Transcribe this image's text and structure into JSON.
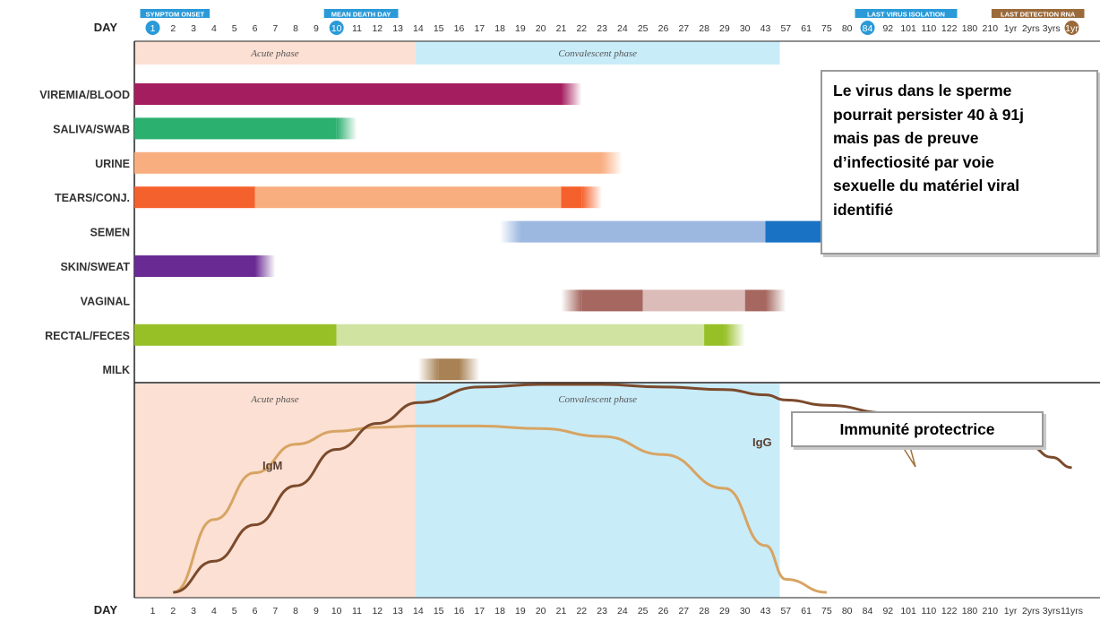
{
  "chart_data": {
    "type": "bar",
    "x_ticks_top": [
      "1",
      "2",
      "3",
      "4",
      "5",
      "6",
      "7",
      "8",
      "9",
      "10",
      "11",
      "12",
      "13",
      "14",
      "15",
      "16",
      "17",
      "18",
      "19",
      "20",
      "21",
      "22",
      "23",
      "24",
      "25",
      "26",
      "27",
      "28",
      "29",
      "30",
      "43",
      "57",
      "61",
      "75",
      "80",
      "84",
      "92",
      "101",
      "110",
      "122",
      "180",
      "210",
      "1yr",
      "2yrs",
      "3yrs",
      "11yrs"
    ],
    "x_ticks_bottom": [
      "1",
      "2",
      "3",
      "4",
      "5",
      "6",
      "7",
      "8",
      "9",
      "10",
      "11",
      "12",
      "13",
      "14",
      "15",
      "16",
      "17",
      "18",
      "19",
      "20",
      "21",
      "22",
      "23",
      "24",
      "25",
      "26",
      "27",
      "28",
      "29",
      "30",
      "43",
      "57",
      "61",
      "75",
      "80",
      "84",
      "92",
      "101",
      "110",
      "122",
      "180",
      "210",
      "1yr",
      "2yrs",
      "3yrs",
      "11yrs"
    ],
    "day_label": "DAY",
    "top_markers": [
      {
        "label": "SYMPTOM ONSET",
        "day": "1",
        "color": "#2a9ad8"
      },
      {
        "label": "MEAN DEATH DAY",
        "day": "10",
        "color": "#2a9ad8"
      },
      {
        "label": "LAST VIRUS ISOLATION",
        "day": "84",
        "color": "#2a9ad8"
      },
      {
        "label": "LAST DETECTION RNA",
        "day": "11yrs",
        "color": "#9b6a3a"
      }
    ],
    "phases": [
      {
        "name": "Acute phase",
        "start_day": "1",
        "end_day": "14",
        "color": "#fbe0d3"
      },
      {
        "name": "Convalescent phase",
        "start_day": "14",
        "end_day": "43",
        "color": "#c9ecf9"
      }
    ],
    "categories": [
      "VIREMIA/BLOOD",
      "SALIVA/SWAB",
      "URINE",
      "TEARS/CONJ.",
      "SEMEN",
      "SKIN/SWEAT",
      "VAGINAL",
      "RECTAL/FECES",
      "MILK"
    ],
    "series": [
      {
        "name": "VIREMIA/BLOOD",
        "segments": [
          {
            "from": "1",
            "to": "21",
            "color": "#a41e5f"
          }
        ],
        "fade_to": "22"
      },
      {
        "name": "SALIVA/SWAB",
        "segments": [
          {
            "from": "1",
            "to": "10",
            "color": "#2cb070"
          }
        ],
        "fade_to": "11"
      },
      {
        "name": "URINE",
        "segments": [
          {
            "from": "1",
            "to": "23",
            "color": "#f9ae80"
          }
        ],
        "fade_to": "24"
      },
      {
        "name": "TEARS/CONJ.",
        "segments": [
          {
            "from": "1",
            "to": "6",
            "color": "#f5612c"
          },
          {
            "from": "6",
            "to": "21",
            "color": "#f9ae80"
          },
          {
            "from": "21",
            "to": "22",
            "color": "#f5612c"
          }
        ],
        "fade_to": "23"
      },
      {
        "name": "SEMEN",
        "segments": [
          {
            "from": "19",
            "to": "43",
            "color": "#9db8e0"
          },
          {
            "from": "43",
            "to": "84",
            "color": "#1a72c4"
          }
        ],
        "fade_from": "18",
        "fade_to": "101"
      },
      {
        "name": "SKIN/SWEAT",
        "segments": [
          {
            "from": "1",
            "to": "6",
            "color": "#6a2a94"
          }
        ],
        "fade_to": "7"
      },
      {
        "name": "VAGINAL",
        "segments": [
          {
            "from": "22",
            "to": "25",
            "color": "#a5675f"
          },
          {
            "from": "25",
            "to": "30",
            "color": "#dcbcb8"
          },
          {
            "from": "30",
            "to": "43",
            "color": "#a5675f"
          }
        ],
        "fade_from": "21",
        "fade_to": "57"
      },
      {
        "name": "RECTAL/FECES",
        "segments": [
          {
            "from": "1",
            "to": "10",
            "color": "#97c027"
          },
          {
            "from": "10",
            "to": "28",
            "color": "#d0e3a1"
          },
          {
            "from": "28",
            "to": "29",
            "color": "#97c027"
          }
        ],
        "fade_to": "30"
      },
      {
        "name": "MILK",
        "segments": [
          {
            "from": "15",
            "to": "16",
            "color": "#a88254"
          }
        ],
        "fade_from": "14",
        "fade_to": "17"
      }
    ],
    "antibody_curves": [
      {
        "name": "IgM",
        "color": "#d7a463",
        "x": [
          "2",
          "4",
          "6",
          "8",
          "10",
          "12",
          "14",
          "17",
          "20",
          "23",
          "26",
          "29",
          "43",
          "57",
          "75"
        ],
        "y": [
          0.0,
          0.28,
          0.46,
          0.57,
          0.62,
          0.635,
          0.64,
          0.64,
          0.63,
          0.6,
          0.53,
          0.4,
          0.18,
          0.05,
          0.0
        ]
      },
      {
        "name": "IgG",
        "color": "#7b4a2c",
        "x": [
          "2",
          "4",
          "6",
          "8",
          "10",
          "12",
          "14",
          "17",
          "20",
          "23",
          "26",
          "29",
          "43",
          "57",
          "75",
          "92",
          "110",
          "180",
          "1yr",
          "2yrs",
          "3yrs",
          "11yrs"
        ],
        "y": [
          0.0,
          0.12,
          0.26,
          0.41,
          0.55,
          0.65,
          0.73,
          0.79,
          0.8,
          0.8,
          0.79,
          0.78,
          0.76,
          0.74,
          0.72,
          0.69,
          0.67,
          0.64,
          0.6,
          0.56,
          0.52,
          0.48
        ]
      }
    ],
    "grid": false,
    "legend": "none"
  },
  "notes": {
    "virus_persistence": [
      "Le virus dans le sperme",
      "pourrait persister 40 à 91j",
      "mais pas de preuve",
      "d’infectiosité par voie",
      "sexuelle du matériel viral",
      "identifié"
    ],
    "protective_immunity": "Immunité protectrice"
  }
}
